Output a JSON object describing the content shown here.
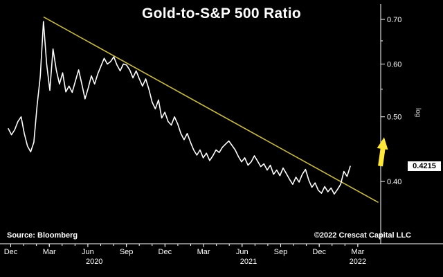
{
  "header": {
    "title": "Gold-to-S&P 500 Ratio"
  },
  "footer": {
    "source": "Source: Bloomberg",
    "copyright": "©2022 Crescat Capital LLC"
  },
  "axis_right": {
    "scale_label": "log",
    "last_price": "0.4215"
  },
  "colors": {
    "background": "#000000",
    "price_line": "#ffffff",
    "trendline": "#c9b94b",
    "arrow": "#ffe83a",
    "axis": "#ffffff",
    "tick_label": "#ffffff",
    "last_price_bg": "#ffffff",
    "last_price_text": "#000000"
  },
  "chart_data": {
    "type": "line",
    "title": "Gold-to-S&P 500 Ratio",
    "y_scale": "log",
    "ylim": [
      0.37,
      0.72
    ],
    "y_ticks": [
      0.7,
      0.6,
      0.5,
      0.4
    ],
    "y_tick_labels": [
      "0.70",
      "0.60",
      "0.50",
      "0.40"
    ],
    "y_minor_ticks": [
      0.65,
      0.55,
      0.45
    ],
    "x_start_label": "Dec 2019",
    "x_end_label": "Feb 2022",
    "points_per_month": 4,
    "x_months": [
      {
        "label": "Dec",
        "m": 0
      },
      {
        "label": "Mar",
        "m": 3
      },
      {
        "label": "Jun",
        "m": 6
      },
      {
        "label": "Sep",
        "m": 9
      },
      {
        "label": "Dec",
        "m": 12
      },
      {
        "label": "Mar",
        "m": 15
      },
      {
        "label": "Jun",
        "m": 18
      },
      {
        "label": "Sep",
        "m": 21
      },
      {
        "label": "Dec",
        "m": 24
      },
      {
        "label": "Mar",
        "m": 27
      }
    ],
    "x_years": [
      {
        "label": "2020",
        "m": 6.5
      },
      {
        "label": "2021",
        "m": 18.5
      },
      {
        "label": "2022",
        "m": 27
      }
    ],
    "series": [
      {
        "name": "Gold-to-S&P 500 Ratio",
        "color": "#ffffff",
        "values": [
          0.48,
          0.47,
          0.478,
          0.492,
          0.5,
          0.472,
          0.452,
          0.443,
          0.458,
          0.52,
          0.575,
          0.695,
          0.6,
          0.548,
          0.632,
          0.588,
          0.56,
          0.582,
          0.545,
          0.556,
          0.544,
          0.566,
          0.588,
          0.56,
          0.532,
          0.552,
          0.576,
          0.56,
          0.58,
          0.596,
          0.612,
          0.6,
          0.605,
          0.615,
          0.598,
          0.586,
          0.6,
          0.598,
          0.588,
          0.572,
          0.586,
          0.57,
          0.556,
          0.57,
          0.55,
          0.526,
          0.514,
          0.53,
          0.498,
          0.508,
          0.492,
          0.486,
          0.5,
          0.488,
          0.472,
          0.462,
          0.472,
          0.458,
          0.446,
          0.438,
          0.446,
          0.434,
          0.441,
          0.43,
          0.437,
          0.446,
          0.442,
          0.45,
          0.455,
          0.46,
          0.453,
          0.446,
          0.436,
          0.428,
          0.434,
          0.423,
          0.428,
          0.437,
          0.429,
          0.421,
          0.425,
          0.416,
          0.423,
          0.41,
          0.416,
          0.408,
          0.419,
          0.411,
          0.403,
          0.396,
          0.406,
          0.399,
          0.41,
          0.417,
          0.402,
          0.392,
          0.398,
          0.388,
          0.384,
          0.393,
          0.386,
          0.391,
          0.383,
          0.389,
          0.396,
          0.414,
          0.407,
          0.4215
        ]
      }
    ],
    "trendline": {
      "color": "#c9b94b",
      "start": {
        "m": 2.55,
        "value": 0.706
      },
      "end": {
        "m": 28.6,
        "value": 0.372
      }
    },
    "last_value": 0.4215,
    "annotation_arrow": {
      "direction": "up",
      "color": "#ffe83a"
    },
    "legend": "none",
    "grid": "off"
  }
}
